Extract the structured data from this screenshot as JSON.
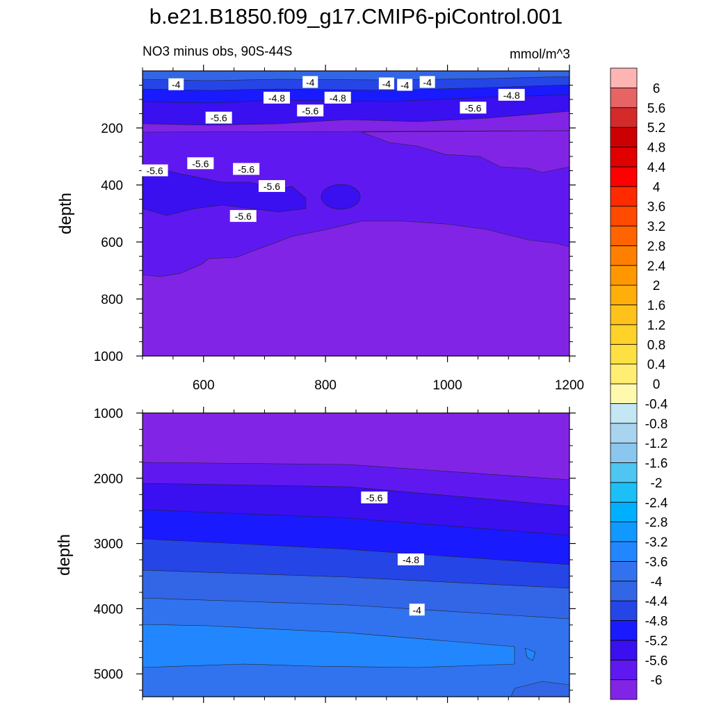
{
  "title": "b.e21.B1850.f09_g17.CMIP6-piControl.001",
  "left_title": "NO3 minus obs, 90S-44S",
  "right_title": "mmol/m^3",
  "colors": {
    "levels_fill": [
      "#8224e6",
      "#5f19f0",
      "#3a0ff0",
      "#1a1aff",
      "#2645e6",
      "#3366e6",
      "#3173ee",
      "#2287ff",
      "#1199ff",
      "#00b0ff",
      "#1cc0f7",
      "#4fc6f1",
      "#8ac6ee",
      "#a8d4f0",
      "#c5e6f3",
      "#fff9ae",
      "#ffee73",
      "#ffe043",
      "#ffd22a",
      "#ffc21a",
      "#ffae0a",
      "#ff9800",
      "#ff8000",
      "#ff6400",
      "#ff4a00",
      "#ff2a00",
      "#ff0000",
      "#e00000",
      "#cc0000",
      "#d42a2a",
      "#e66464",
      "#ffb4b4"
    ]
  },
  "chart_data": [
    {
      "type": "heatmap",
      "panel": "upper",
      "xlim": [
        500,
        1200
      ],
      "ylim": [
        1000,
        0
      ],
      "xticks": [
        "600",
        "800",
        "1000",
        "1200"
      ],
      "yticks": [
        "200",
        "400",
        "600",
        "800",
        "1000"
      ],
      "ylabel": "depth",
      "contour_labels": [
        {
          "text": "-4",
          "x": 555,
          "y": 48
        },
        {
          "text": "-4",
          "x": 775,
          "y": 40
        },
        {
          "text": "-4",
          "x": 900,
          "y": 45
        },
        {
          "text": "-4",
          "x": 930,
          "y": 50
        },
        {
          "text": "-4",
          "x": 967,
          "y": 40
        },
        {
          "text": "-4.8",
          "x": 720,
          "y": 95
        },
        {
          "text": "-4.8",
          "x": 820,
          "y": 95
        },
        {
          "text": "-4.8",
          "x": 1105,
          "y": 85
        },
        {
          "text": "-5.6",
          "x": 775,
          "y": 140
        },
        {
          "text": "-5.6",
          "x": 625,
          "y": 165
        },
        {
          "text": "-5.6",
          "x": 1042,
          "y": 130
        },
        {
          "text": "-5.6",
          "x": 520,
          "y": 350
        },
        {
          "text": "-5.6",
          "x": 595,
          "y": 325
        },
        {
          "text": "-5.6",
          "x": 670,
          "y": 345
        },
        {
          "text": "-5.6",
          "x": 712,
          "y": 405
        },
        {
          "text": "-5.6",
          "x": 665,
          "y": 510
        }
      ]
    },
    {
      "type": "heatmap",
      "panel": "lower",
      "ylim": [
        1000,
        5350
      ],
      "yticks": [
        "1000",
        "2000",
        "3000",
        "4000",
        "5000"
      ],
      "ylabel": "depth",
      "contour_labels": [
        {
          "text": "-5.6",
          "x": 880,
          "y": 2300
        },
        {
          "text": "-4.8",
          "x": 940,
          "y": 3250
        },
        {
          "text": "-4",
          "x": 950,
          "y": 4020
        }
      ]
    },
    {
      "type": "colorbar",
      "labels": [
        "6",
        "5.6",
        "5.2",
        "4.8",
        "4.4",
        "4",
        "3.6",
        "3.2",
        "2.8",
        "2.4",
        "2",
        "1.6",
        "1.2",
        "0.8",
        "0.4",
        "0",
        "-0.4",
        "-0.8",
        "-1.2",
        "-1.6",
        "-2",
        "-2.4",
        "-2.8",
        "-3.2",
        "-3.6",
        "-4",
        "-4.4",
        "-4.8",
        "-5.2",
        "-5.6",
        "-6"
      ]
    }
  ]
}
